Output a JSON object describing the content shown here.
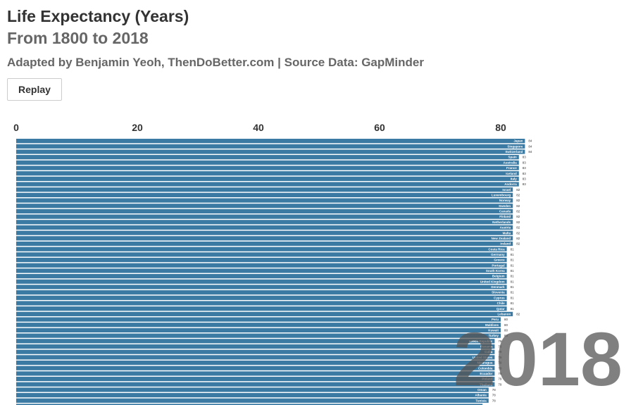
{
  "header": {
    "title": "Life Expectancy (Years)",
    "subtitle": "From 1800 to 2018",
    "source": "Adapted by Benjamin Yeoh, ThenDoBetter.com | Source Data: GapMinder",
    "replay_label": "Replay"
  },
  "colors": {
    "bar": "#3a7aa3",
    "accent": "#5a5a5a"
  },
  "chart_data": {
    "type": "bar",
    "orientation": "horizontal",
    "year": "2018",
    "x_ticks": [
      0,
      20,
      40,
      60,
      80
    ],
    "xlim": [
      0,
      80
    ],
    "background_bar_count": 5,
    "categories": [
      "Japan",
      "Singapore",
      "Switzerland",
      "Spain",
      "Australia",
      "France",
      "Iceland",
      "Italy",
      "Andorra",
      "Israel",
      "Luxembourg",
      "Norway",
      "Sweden",
      "Canada",
      "Finland",
      "Netherlands",
      "Austria",
      "Malta",
      "New Zealand",
      "Ireland",
      "Costa Rica",
      "Germany",
      "Greece",
      "Portugal",
      "South Korea",
      "Belgium",
      "United Kingdom",
      "Denmark",
      "Slovenia",
      "Cyprus",
      "Chile",
      "Qatar",
      "Lebanon",
      "Peru",
      "Maldives",
      "Kuwait",
      "Turkey",
      "Czech Republic",
      "Panama",
      "Cuba",
      "United States",
      "Nicaragua",
      "Colombia",
      "Ecuador",
      "Poland",
      "Thailand",
      "Oman",
      "Albania",
      "Tunisia"
    ],
    "values": [
      84,
      84,
      84,
      83,
      83,
      83,
      83,
      83,
      83,
      82,
      82,
      82,
      82,
      82,
      82,
      82,
      82,
      82,
      82,
      82,
      81,
      81,
      81,
      81,
      81,
      81,
      81,
      81,
      81,
      81,
      81,
      81,
      82,
      80,
      80,
      80,
      80,
      79,
      79,
      79,
      79,
      79,
      79,
      79,
      79,
      79,
      78,
      78,
      78
    ],
    "value_labels": [
      "84",
      "84",
      "84",
      "83",
      "83",
      "83",
      "83",
      "83",
      "83",
      "82",
      "82",
      "82",
      "82",
      "82",
      "82",
      "82",
      "82",
      "82",
      "82",
      "82",
      "81",
      "81",
      "81",
      "81",
      "81",
      "81",
      "81",
      "81",
      "81",
      "81",
      "81",
      "81",
      "82",
      "80",
      "80",
      "80",
      "80",
      "79",
      "79",
      "79",
      "79",
      "79",
      "79",
      "79",
      "79",
      "79",
      "78",
      "78",
      "78"
    ]
  }
}
